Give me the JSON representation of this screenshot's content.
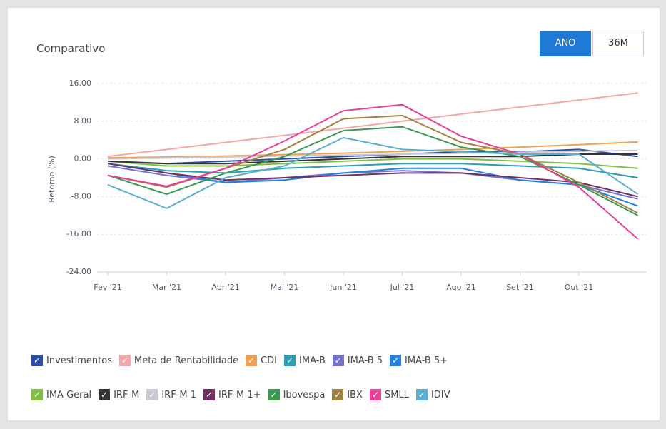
{
  "controls": [
    "ANO",
    "36M"
  ],
  "chart_data": {
    "type": "line",
    "title": "Comparativo",
    "y_label": "Retorno (%)",
    "categories": [
      "Fev '21",
      "Mar '21",
      "Abr '21",
      "Mai '21",
      "Jun '21",
      "Jul '21",
      "Ago '21",
      "Set '21",
      "Out '21",
      null
    ],
    "ylim": [
      -24,
      16
    ],
    "yticks": [
      {
        "value": -24,
        "label": "-24.00"
      },
      {
        "value": -16,
        "label": "-16.00"
      },
      {
        "value": -8,
        "label": "-8.00"
      },
      {
        "value": 0,
        "label": "0.00"
      },
      {
        "value": 8,
        "label": "8.00"
      },
      {
        "value": 16,
        "label": "16.00"
      }
    ],
    "grid": true,
    "series": [
      {
        "name": "Investimentos",
        "color": "#2a4ea8",
        "values": [
          -0.5,
          -1,
          -0.5,
          0,
          0.5,
          1,
          1.5,
          1.5,
          2,
          0.5
        ]
      },
      {
        "name": "Meta de Rentabilidade",
        "color": "#f4a7a7",
        "values": [
          0.5,
          2,
          3.5,
          5,
          6.5,
          8,
          9.5,
          11,
          12.5,
          14
        ]
      },
      {
        "name": "CDI",
        "color": "#f0a050",
        "values": [
          0.2,
          0.4,
          0.6,
          0.9,
          1.2,
          1.6,
          2,
          2.5,
          3,
          3.6
        ]
      },
      {
        "name": "IMA-B",
        "color": "#2aa0b0",
        "values": [
          -1,
          -2.5,
          -3,
          -2,
          -1.5,
          -1,
          -1,
          -1.5,
          -2,
          -4
        ]
      },
      {
        "name": "IMA-B 5",
        "color": "#7474d0",
        "values": [
          -1.5,
          -3.5,
          -5,
          -4,
          -3,
          -2.5,
          -3,
          -4.5,
          -5.5,
          -8.5
        ]
      },
      {
        "name": "IMA-B 5+",
        "color": "#2282e0",
        "values": [
          -1,
          -3,
          -5,
          -4.5,
          -3,
          -2,
          -2,
          -4.5,
          -5.5,
          -10
        ]
      },
      {
        "name": "IMA Geral",
        "color": "#80c040",
        "values": [
          -0.5,
          -1.5,
          -1.5,
          -1,
          -0.5,
          0,
          0,
          -0.5,
          -1,
          -2
        ]
      },
      {
        "name": "IRF-M",
        "color": "#333333",
        "values": [
          -0.5,
          -1,
          -1,
          -0.5,
          0,
          0.5,
          0.5,
          0.5,
          1,
          1
        ]
      },
      {
        "name": "IRF-M 1",
        "color": "#c8c8d2",
        "values": [
          0,
          0.2,
          0.4,
          0.6,
          0.8,
          1,
          1.2,
          1.4,
          1.6,
          1.8
        ]
      },
      {
        "name": "IRF-M 1+",
        "color": "#703060",
        "values": [
          -1,
          -3,
          -4.5,
          -4,
          -3.5,
          -3,
          -3,
          -4,
          -5,
          -8
        ]
      },
      {
        "name": "Ibovespa",
        "color": "#3a9a50",
        "values": [
          -3.5,
          -7.5,
          -3,
          0.5,
          6,
          6.8,
          2.5,
          0.5,
          -5.5,
          -12
        ]
      },
      {
        "name": "IBX",
        "color": "#a08040",
        "values": [
          -3.5,
          -6,
          -2,
          2,
          8.5,
          9.2,
          3.5,
          1,
          -5,
          -11.5
        ]
      },
      {
        "name": "SMLL",
        "color": "#e8409a",
        "values": [
          -3.5,
          -5.8,
          -2,
          3.8,
          10.2,
          11.5,
          4.8,
          1,
          -6,
          -17
        ]
      },
      {
        "name": "IDIV",
        "color": "#5aaed0",
        "values": [
          -5.5,
          -10.5,
          -4,
          -1.5,
          4.5,
          2,
          1.5,
          1,
          1,
          -7.5
        ]
      }
    ]
  }
}
